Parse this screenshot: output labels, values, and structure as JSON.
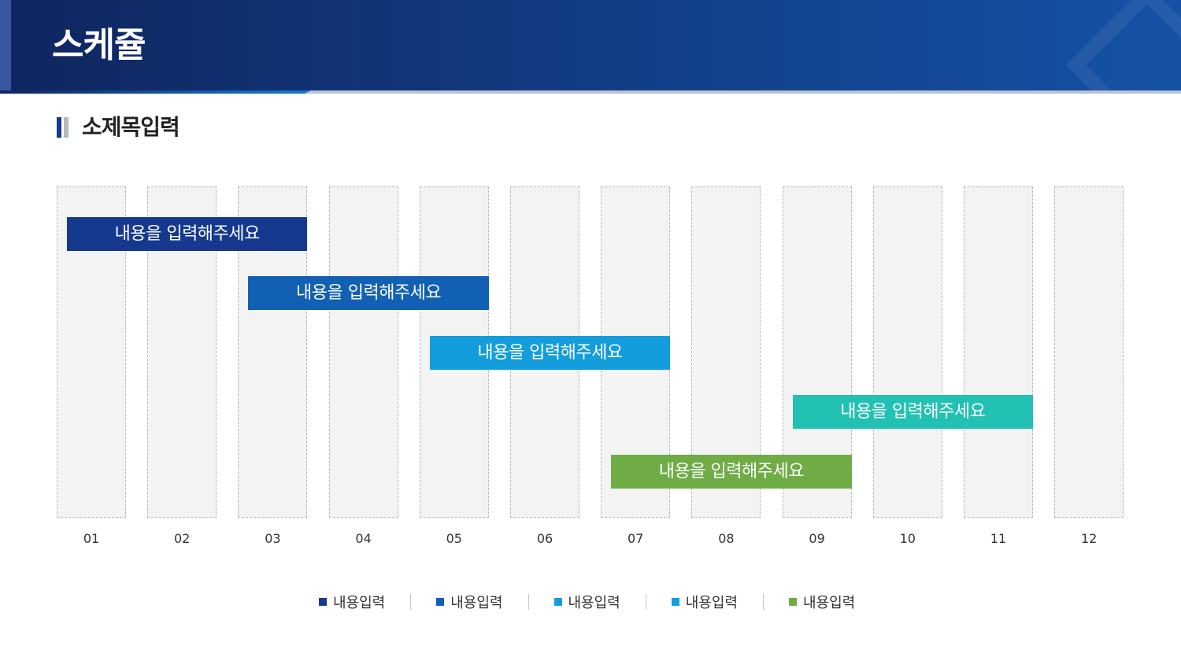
{
  "header": {
    "title": "스케쥴"
  },
  "subtitle": "소제목입력",
  "months": [
    "01",
    "02",
    "03",
    "04",
    "05",
    "06",
    "07",
    "08",
    "09",
    "10",
    "11",
    "12"
  ],
  "bars": [
    {
      "label": "내용을 입력해주세요",
      "color": "#15398e",
      "start_month": 1,
      "end_month": 3
    },
    {
      "label": "내용을 입력해주세요",
      "color": "#1160b3",
      "start_month": 3,
      "end_month": 5
    },
    {
      "label": "내용을 입력해주세요",
      "color": "#139ddc",
      "start_month": 5,
      "end_month": 7
    },
    {
      "label": "내용을 입력해주세요",
      "color": "#22c1b3",
      "start_month": 9,
      "end_month": 11
    },
    {
      "label": "내용을 입력해주세요",
      "color": "#6fac46",
      "start_month": 7,
      "end_month": 9
    }
  ],
  "legend": [
    {
      "label": "내용입력",
      "color": "#15398e"
    },
    {
      "label": "내용입력",
      "color": "#1160b3"
    },
    {
      "label": "내용입력",
      "color": "#139ddc"
    },
    {
      "label": "내용입력",
      "color": "#139ddc"
    },
    {
      "label": "내용입력",
      "color": "#6fac46"
    }
  ]
}
